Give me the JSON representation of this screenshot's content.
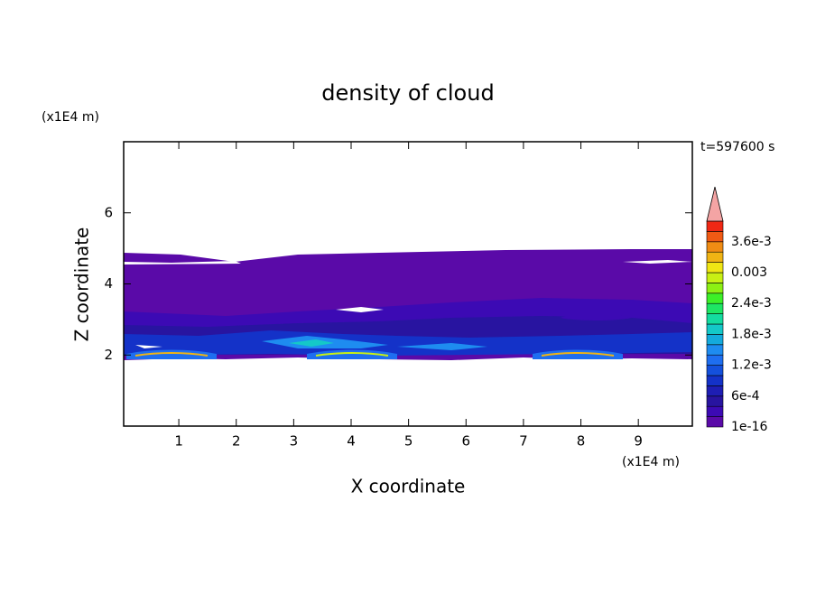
{
  "chart_data": {
    "type": "contour",
    "title": "density of cloud",
    "x_label": "X coordinate",
    "y_label": "Z coordinate",
    "x_unit": "(x1E4 m)",
    "y_unit": "(x1E4 m)",
    "time_label": "t=597600 s",
    "xlim": [
      0.04,
      9.94
    ],
    "ylim": [
      0,
      8
    ],
    "xticks": [
      1,
      2,
      3,
      4,
      5,
      6,
      7,
      8,
      9
    ],
    "yticks": [
      2,
      4,
      6
    ],
    "colorbar": {
      "levels": [
        0,
        0.0002,
        0.0004,
        0.0006,
        0.0008,
        0.001,
        0.0012,
        0.0014,
        0.0016,
        0.0018,
        0.002,
        0.0022,
        0.0024,
        0.0026,
        0.0028,
        0.003,
        0.0032,
        0.0034,
        0.0036,
        0.0038,
        0.004
      ],
      "colors": [
        "#5a0aa8",
        "#3c0ab4",
        "#2814a0",
        "#1e1eb4",
        "#1432c8",
        "#1450dc",
        "#1e6ef0",
        "#1e8cf0",
        "#14aadc",
        "#14c8c8",
        "#14dca0",
        "#1ee664",
        "#3cf028",
        "#8cf014",
        "#c8f014",
        "#f0e614",
        "#f0b414",
        "#f08c14",
        "#f05a14",
        "#f02814"
      ],
      "over_color": "#f4a4a4",
      "ticks": [
        {
          "value": 1e-16,
          "label": "1e-16"
        },
        {
          "value": 0.0006,
          "label": "6e-4"
        },
        {
          "value": 0.0012,
          "label": "1.2e-3"
        },
        {
          "value": 0.0018,
          "label": "1.8e-3"
        },
        {
          "value": 0.0024,
          "label": "2.4e-3"
        },
        {
          "value": 0.003,
          "label": "0.003"
        },
        {
          "value": 0.0036,
          "label": "3.6e-3"
        }
      ]
    }
  }
}
